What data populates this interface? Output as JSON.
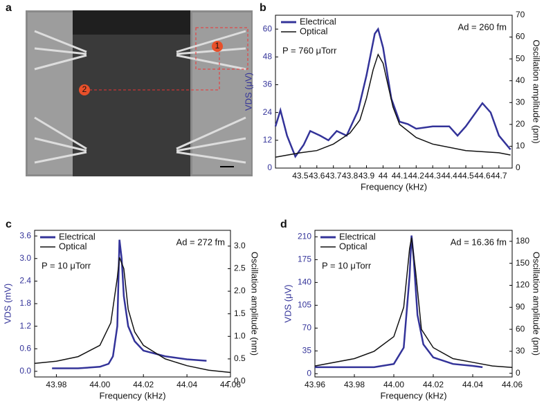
{
  "panel_labels": [
    "a",
    "b",
    "c",
    "d"
  ],
  "image_markers": [
    "1",
    "2"
  ],
  "chart_data": [
    {
      "type": "line",
      "xlabel": "Frequency (kHz)",
      "ylabel": "VDS (μV)",
      "y2label": "Oscillation amplitude (pm)",
      "annotations": [
        "Ad = 260 fm",
        "P = 760 μTorr"
      ],
      "legend": "upper left",
      "xlim": [
        43.35,
        44.78
      ],
      "xticks": [
        43.5,
        43.6,
        43.7,
        43.8,
        43.9,
        44.0,
        44.1,
        44.2,
        44.3,
        44.4,
        44.5,
        44.6,
        44.7
      ],
      "ylim": [
        0,
        66
      ],
      "yticks": [
        0,
        12,
        24,
        36,
        48,
        60
      ],
      "y2lim": [
        0,
        70
      ],
      "y2ticks": [
        0,
        10,
        20,
        30,
        40,
        50,
        60,
        70
      ],
      "series": [
        {
          "name": "Electrical",
          "color": "#333399",
          "axis": "y",
          "x": [
            43.35,
            43.38,
            43.42,
            43.47,
            43.52,
            43.56,
            43.62,
            43.67,
            43.72,
            43.78,
            43.85,
            43.9,
            43.95,
            43.97,
            44.0,
            44.05,
            44.1,
            44.15,
            44.2,
            44.3,
            44.4,
            44.45,
            44.5,
            44.6,
            44.65,
            44.7,
            44.77
          ],
          "values": [
            18,
            25,
            14,
            5,
            10,
            16,
            14,
            12,
            16,
            14,
            25,
            40,
            58,
            60,
            52,
            30,
            20,
            19,
            17,
            18,
            18,
            14,
            18,
            28,
            24,
            14,
            8
          ]
        },
        {
          "name": "Optical",
          "color": "#111111",
          "axis": "y2",
          "x": [
            43.35,
            43.5,
            43.6,
            43.7,
            43.8,
            43.86,
            43.9,
            43.94,
            43.97,
            44.0,
            44.03,
            44.06,
            44.1,
            44.2,
            44.3,
            44.5,
            44.7,
            44.77
          ],
          "values": [
            5,
            7,
            8,
            11,
            16,
            22,
            32,
            45,
            52,
            48,
            38,
            28,
            20,
            14,
            11,
            8,
            7,
            6
          ]
        }
      ]
    },
    {
      "type": "line",
      "xlabel": "Frequency (kHz)",
      "ylabel": "VDS (mV)",
      "y2label": "Oscillation amplitude (nm)",
      "annotations": [
        "Ad = 272 fm",
        "P = 10 μTorr"
      ],
      "legend": "upper left",
      "xlim": [
        43.97,
        44.06
      ],
      "xticks": [
        43.98,
        {
          "value": 44,
          "label": "44.00"
        },
        44.02,
        44.04,
        44.06
      ],
      "ylim": [
        -0.15,
        3.75
      ],
      "yticks": [
        {
          "value": 0,
          "label": "0.0"
        },
        0.6,
        1.2,
        1.8,
        2.4,
        {
          "value": 3,
          "label": "3.0"
        },
        3.6
      ],
      "y2lim": [
        0.1,
        3.35
      ],
      "y2ticks": [
        {
          "value": 0,
          "label": "0.0"
        },
        0.5,
        {
          "value": 1,
          "label": "1.0"
        },
        1.5,
        {
          "value": 2,
          "label": "2.0"
        },
        2.5,
        {
          "value": 3,
          "label": "3.0"
        }
      ],
      "series": [
        {
          "name": "Electrical",
          "color": "#333399",
          "axis": "y",
          "x": [
            43.978,
            43.99,
            44.0,
            44.004,
            44.006,
            44.008,
            44.009,
            44.01,
            44.011,
            44.013,
            44.016,
            44.02,
            44.03,
            44.04,
            44.049
          ],
          "values": [
            0.08,
            0.08,
            0.12,
            0.2,
            0.4,
            1.2,
            3.5,
            3.0,
            2.0,
            1.2,
            0.8,
            0.55,
            0.4,
            0.32,
            0.28
          ]
        },
        {
          "name": "Optical",
          "color": "#111111",
          "axis": "y2",
          "x": [
            43.97,
            43.98,
            43.99,
            44.0,
            44.005,
            44.008,
            44.009,
            44.011,
            44.013,
            44.016,
            44.02,
            44.03,
            44.04,
            44.05,
            44.06
          ],
          "values": [
            0.4,
            0.45,
            0.55,
            0.8,
            1.3,
            2.3,
            2.75,
            2.5,
            1.6,
            1.1,
            0.8,
            0.5,
            0.35,
            0.25,
            0.2
          ]
        }
      ]
    },
    {
      "type": "line",
      "xlabel": "Frequency (kHz)",
      "ylabel": "VDS (μV)",
      "y2label": "Oscillation amplitude (pm)",
      "annotations": [
        "Ad = 16.36 fm",
        "P = 10 μTorr"
      ],
      "legend": "upper left",
      "xlim": [
        43.96,
        44.06
      ],
      "xticks": [
        43.96,
        43.98,
        {
          "value": 44,
          "label": "44.00"
        },
        44.02,
        44.04,
        44.06
      ],
      "ylim": [
        -5,
        220
      ],
      "yticks": [
        0,
        35,
        70,
        105,
        140,
        175,
        210
      ],
      "y2lim": [
        -5,
        195
      ],
      "y2ticks": [
        0,
        30,
        60,
        90,
        120,
        150,
        180
      ],
      "series": [
        {
          "name": "Electrical",
          "color": "#333399",
          "axis": "y",
          "x": [
            43.96,
            43.99,
            44.0,
            44.005,
            44.008,
            44.009,
            44.01,
            44.012,
            44.015,
            44.02,
            44.03,
            44.04,
            44.045
          ],
          "values": [
            10,
            10,
            15,
            40,
            150,
            212,
            180,
            90,
            45,
            25,
            15,
            12,
            10
          ]
        },
        {
          "name": "Optical",
          "color": "#111111",
          "axis": "y2",
          "x": [
            43.96,
            43.98,
            43.99,
            44.0,
            44.005,
            44.008,
            44.009,
            44.011,
            44.014,
            44.02,
            44.03,
            44.04,
            44.05,
            44.06
          ],
          "values": [
            10,
            20,
            30,
            50,
            90,
            170,
            185,
            140,
            60,
            35,
            20,
            15,
            10,
            8
          ]
        }
      ]
    }
  ]
}
